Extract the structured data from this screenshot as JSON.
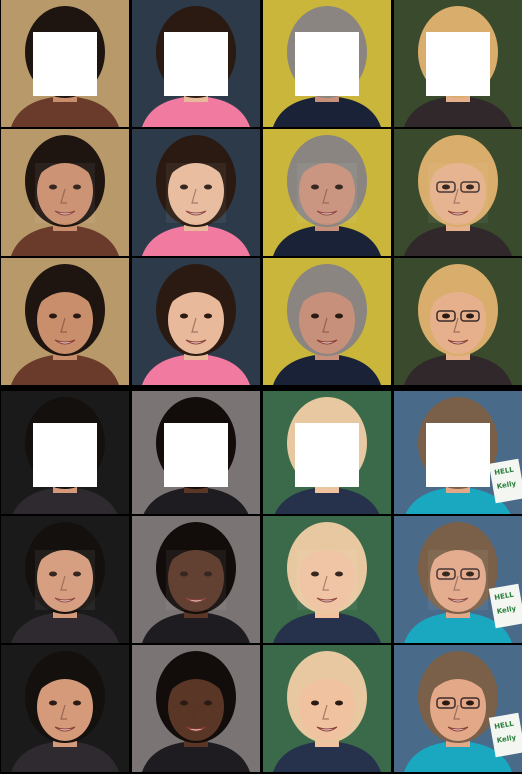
{
  "grid": {
    "rows": 6,
    "columns": 4,
    "row_types": [
      "masked-input",
      "inpainted-result",
      "original",
      "masked-input",
      "inpainted-result",
      "original"
    ]
  },
  "subjects": [
    {
      "id": "woman-dark-hair",
      "skin": "#c98e6c",
      "hair": "#1e1410",
      "bg": "#b89a6a",
      "cloth": "#6a3a2a"
    },
    {
      "id": "toddler-hood",
      "skin": "#e8b99b",
      "hair": "#2a1a12",
      "bg": "#2c3a4a",
      "cloth": "#f07aa0"
    },
    {
      "id": "older-man-suit",
      "skin": "#c7907a",
      "hair": "#8a8580",
      "bg": "#c9b63a",
      "cloth": "#1a2238"
    },
    {
      "id": "blonde-woman-glasses",
      "skin": "#e6b08c",
      "hair": "#d9ad6b",
      "bg": "#3a4a2c",
      "cloth": "#30282a"
    },
    {
      "id": "young-man-dark-hair",
      "skin": "#d49a7a",
      "hair": "#14100e",
      "bg": "#1a1a1a",
      "cloth": "#2e2a30"
    },
    {
      "id": "woman-long-black-hair",
      "skin": "#5a3626",
      "hair": "#120c0a",
      "bg": "#7a7474",
      "cloth": "#1e1c20"
    },
    {
      "id": "smiling-baby",
      "skin": "#f0c2a0",
      "hair": "#e8c8a0",
      "bg": "#3a6a4a",
      "cloth": "#26324c"
    },
    {
      "id": "woman-name-badge",
      "skin": "#e3a888",
      "hair": "#7a6048",
      "bg": "#4a6a8a",
      "cloth": "#1aa8c0"
    }
  ],
  "badge": {
    "line1": "HELL",
    "line2": "Kelly"
  },
  "mask_color": "#ffffff"
}
